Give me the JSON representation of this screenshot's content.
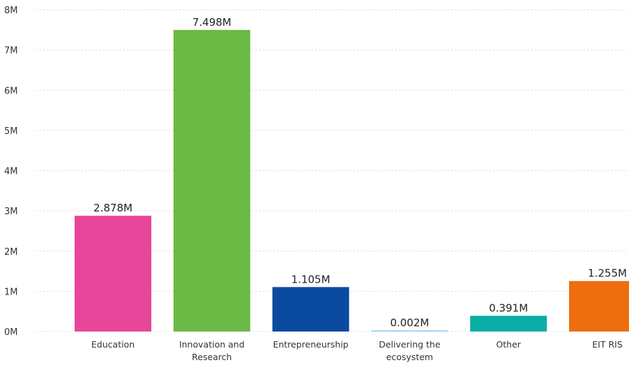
{
  "chart_data": {
    "type": "bar",
    "categories": [
      [
        "Education"
      ],
      [
        "Innovation and",
        "Research"
      ],
      [
        "Entrepreneurship"
      ],
      [
        "Delivering the",
        "ecosystem"
      ],
      [
        "Other"
      ],
      [
        "EIT RIS"
      ]
    ],
    "values": [
      2.878,
      7.498,
      1.105,
      0.002,
      0.391,
      1.255
    ],
    "data_labels": [
      "2.878M",
      "7.498M",
      "1.105M",
      "0.002M",
      "0.391M",
      "1.255M"
    ],
    "colors": [
      "#e8469a",
      "#6ab945",
      "#0a4aa0",
      "#8ecdf0",
      "#0aaea7",
      "#ec6e0c"
    ],
    "ylim": [
      0,
      8
    ],
    "yticks": [
      "0M",
      "1M",
      "2M",
      "3M",
      "4M",
      "5M",
      "6M",
      "7M",
      "8M"
    ],
    "grid": true,
    "title": "",
    "xlabel": "",
    "ylabel": ""
  }
}
